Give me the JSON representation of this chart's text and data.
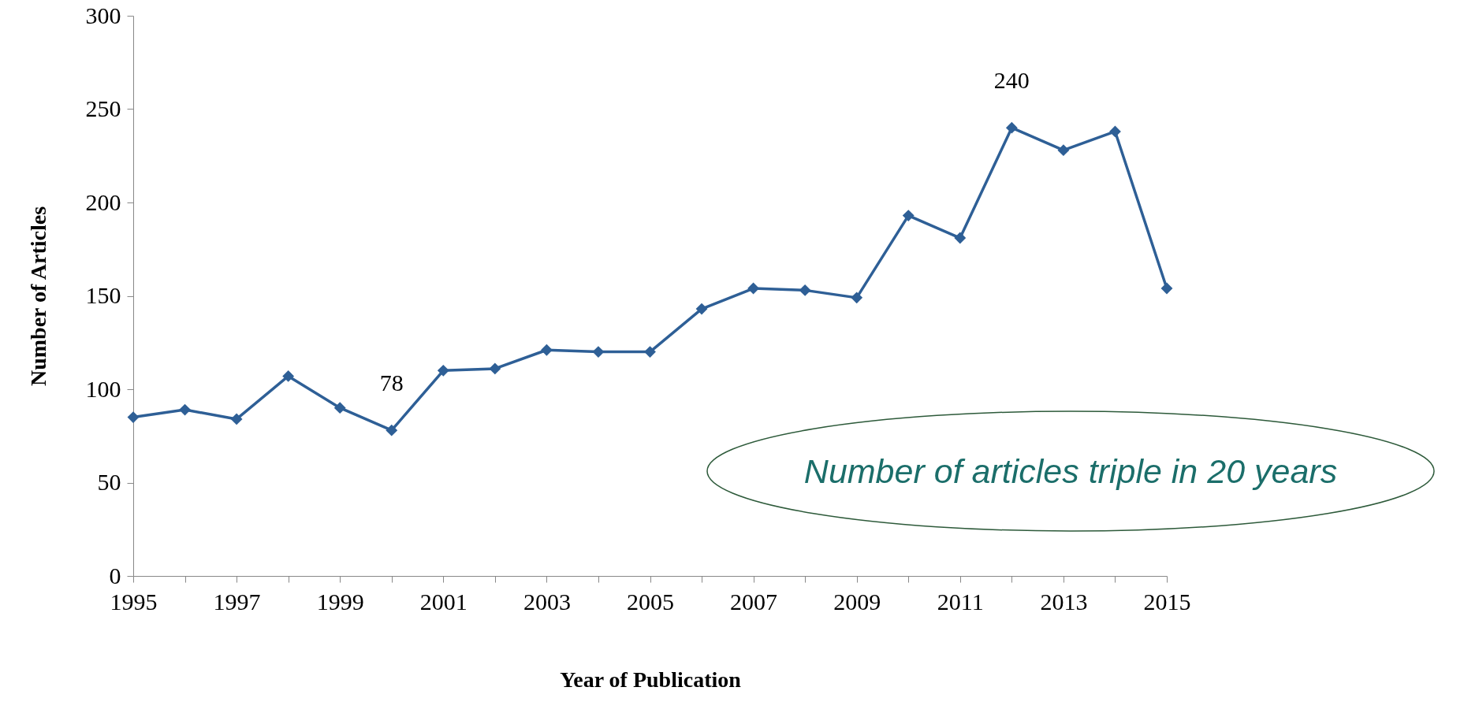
{
  "chart_data": {
    "type": "line",
    "xlabel": "Year of Publication",
    "ylabel": "Number of Articles",
    "x": [
      1995,
      1996,
      1997,
      1998,
      1999,
      2000,
      2001,
      2002,
      2003,
      2004,
      2005,
      2006,
      2007,
      2008,
      2009,
      2010,
      2011,
      2012,
      2013,
      2014,
      2015
    ],
    "series": [
      {
        "color": "#2e5f96",
        "values": [
          85,
          89,
          84,
          107,
          90,
          78,
          110,
          111,
          121,
          120,
          120,
          143,
          154,
          153,
          149,
          193,
          181,
          240,
          228,
          238,
          154
        ],
        "value_labels": [
          null,
          null,
          null,
          null,
          null,
          "78",
          null,
          null,
          null,
          null,
          null,
          null,
          null,
          null,
          null,
          null,
          null,
          "240",
          null,
          null,
          null
        ]
      }
    ],
    "xlim": [
      1995,
      2015
    ],
    "xticks": [
      1995,
      {
        "value": 1996,
        "label": null
      },
      1997,
      {
        "value": 1998,
        "label": null
      },
      1999,
      {
        "value": 2000,
        "label": null
      },
      2001,
      {
        "value": 2002,
        "label": null
      },
      2003,
      {
        "value": 2004,
        "label": null
      },
      2005,
      {
        "value": 2006,
        "label": null
      },
      2007,
      {
        "value": 2008,
        "label": null
      },
      2009,
      {
        "value": 2010,
        "label": null
      },
      2011,
      {
        "value": 2012,
        "label": null
      },
      2013,
      {
        "value": 2014,
        "label": null
      },
      2015
    ],
    "ylim": [
      0,
      300
    ],
    "yticks": [
      0,
      50,
      100,
      150,
      200,
      250,
      300
    ],
    "grid": false,
    "marker": "diamond",
    "line_style": "solid",
    "annotations": [
      "Number of articles triple in 20 years"
    ]
  }
}
